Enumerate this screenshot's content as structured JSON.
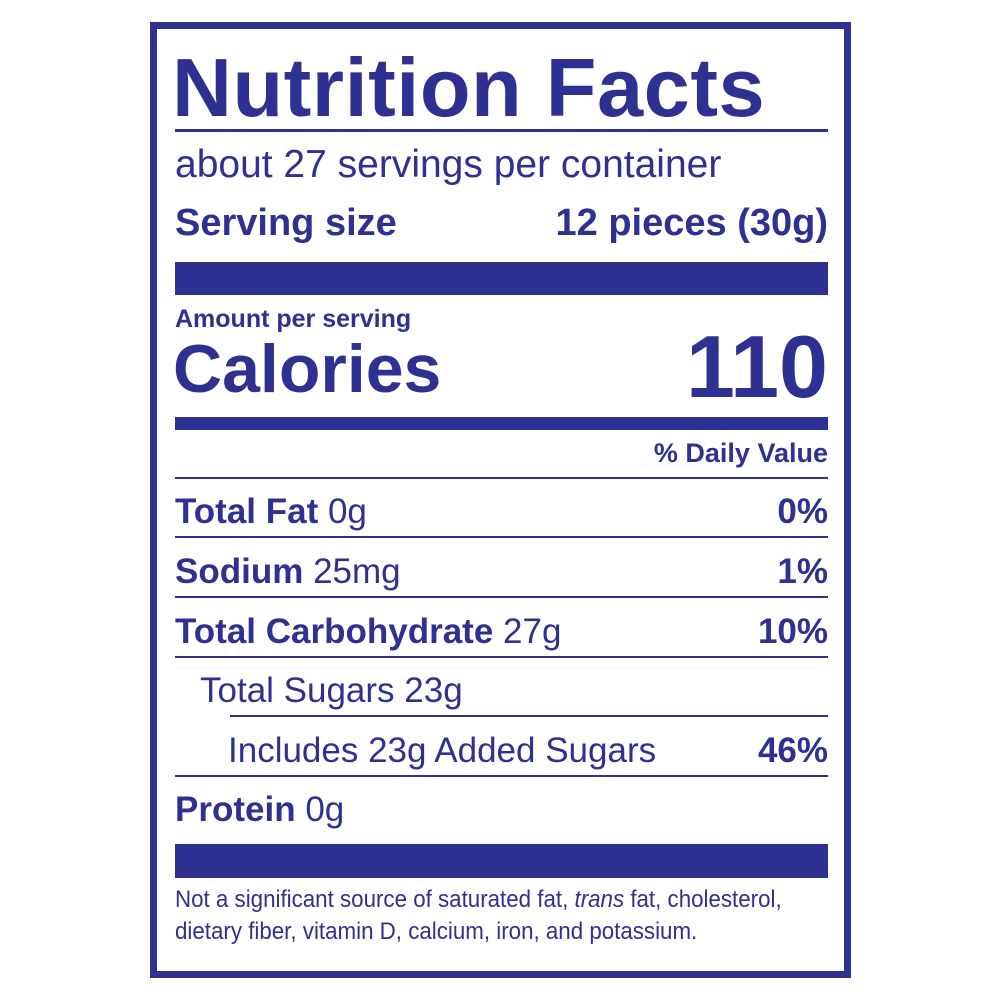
{
  "title": "Nutrition Facts",
  "servings_per_container": "about 27 servings per container",
  "serving_size": {
    "label": "Serving size",
    "value": "12 pieces (30g)"
  },
  "amount_per_serving": "Amount per serving",
  "calories": {
    "label": "Calories",
    "value": "110"
  },
  "daily_value_header": "% Daily Value",
  "nutrients": [
    {
      "name": "Total Fat",
      "amount": "0g",
      "dv": "0%"
    },
    {
      "name": "Sodium",
      "amount": "25mg",
      "dv": "1%"
    },
    {
      "name": "Total Carbohydrate",
      "amount": "27g",
      "dv": "10%"
    },
    {
      "name": "Total Sugars 23g",
      "amount": "",
      "dv": ""
    },
    {
      "name": "Includes 23g Added Sugars",
      "amount": "",
      "dv": "46%"
    },
    {
      "name": "Protein",
      "amount": "0g",
      "dv": ""
    }
  ],
  "footnote": {
    "part1": "Not a significant source of saturated fat, ",
    "italic": "trans",
    "part2": " fat, cholesterol,",
    "line2": "dietary fiber, vitamin D, calcium, iron, and potassium."
  },
  "colors": {
    "ink": "#2e3192",
    "background": "#ffffff"
  }
}
